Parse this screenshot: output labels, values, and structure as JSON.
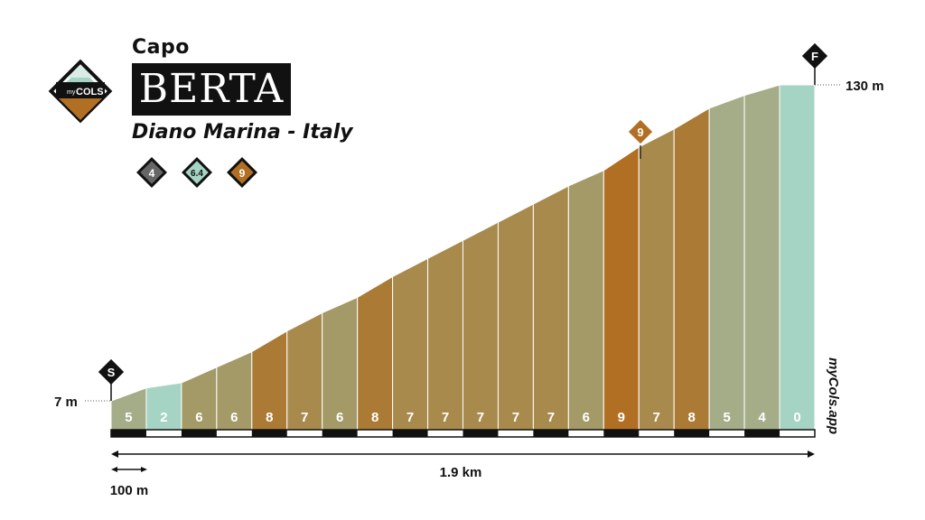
{
  "header": {
    "prefix": "Capo",
    "name": "BERTA",
    "location": "Diano Marina - Italy",
    "logo_text_small": "my",
    "logo_text": "COLS",
    "badges": [
      {
        "value": "4",
        "color": "#666666"
      },
      {
        "value": "6.4",
        "color": "#a5d3c4"
      },
      {
        "value": "9",
        "color": "#b06f22"
      }
    ]
  },
  "chart_data": {
    "type": "area",
    "start_marker": "S",
    "finish_marker": "F",
    "max_marker": "9",
    "start_elevation_label": "7 m",
    "end_elevation_label": "130 m",
    "start_elevation_m": 7,
    "end_elevation_m": 130,
    "distance_label": "1.9 km",
    "scale_label": "100 m",
    "watermark": "myCols.app",
    "segment_length_m": 100,
    "gradients": [
      "5",
      "2",
      "6",
      "6",
      "8",
      "7",
      "6",
      "8",
      "7",
      "7",
      "7",
      "7",
      "7",
      "6",
      "9",
      "7",
      "8",
      "5",
      "4",
      "0"
    ],
    "gradient_values": [
      5,
      2,
      6,
      6,
      8,
      7,
      6,
      8,
      7,
      7,
      7,
      7,
      7,
      6,
      9,
      7,
      8,
      5,
      4,
      0
    ],
    "colors": {
      "2": "#a5d3c4",
      "4": "#a4ad88",
      "5": "#a4ad88",
      "6": "#a39a67",
      "7": "#a98a4d",
      "8": "#ab7b35",
      "9": "#b06f22",
      "0": "#a5d3c4",
      "marker": "#111111"
    }
  }
}
